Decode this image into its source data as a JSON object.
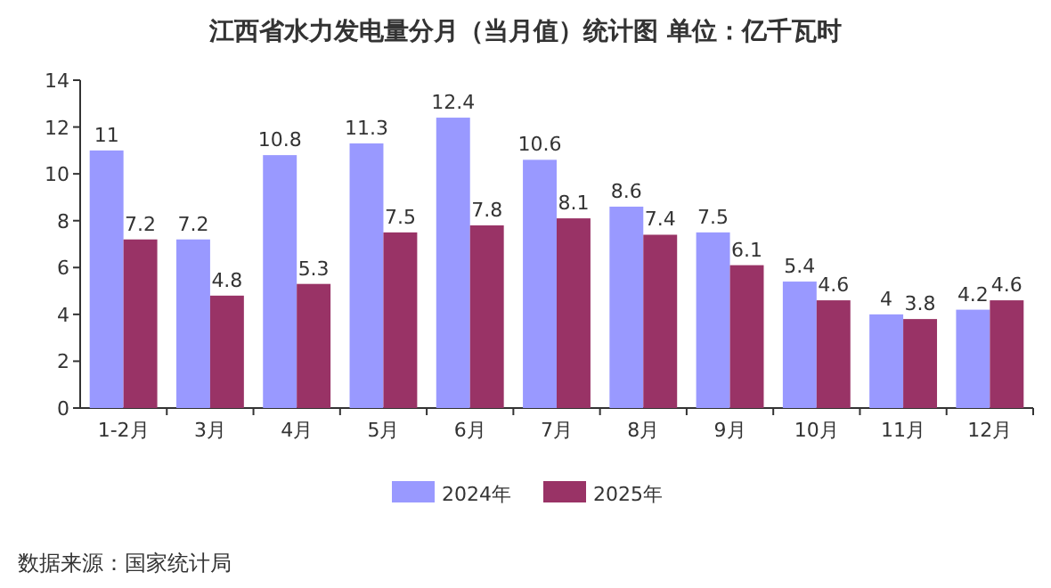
{
  "chart_data": {
    "type": "bar",
    "title": "江西省水力发电量分月（当月值）统计图 单位：亿千瓦时",
    "categories": [
      "1-2月",
      "3月",
      "4月",
      "5月",
      "6月",
      "7月",
      "8月",
      "9月",
      "10月",
      "11月",
      "12月"
    ],
    "series": [
      {
        "name": "2024年",
        "color": "#9999ff",
        "values": [
          11,
          7.2,
          10.8,
          11.3,
          12.4,
          10.6,
          8.6,
          7.5,
          5.4,
          4,
          4.2
        ]
      },
      {
        "name": "2025年",
        "color": "#993366",
        "values": [
          7.2,
          4.8,
          5.3,
          7.5,
          7.8,
          8.1,
          7.4,
          6.1,
          4.6,
          3.8,
          4.6
        ]
      }
    ],
    "ylim": [
      0,
      14
    ],
    "yticks": [
      0,
      2,
      4,
      6,
      8,
      10,
      12,
      14
    ],
    "data_labels": true,
    "legend": "bottom",
    "annotations": [
      "数据来源：国家统计局"
    ]
  }
}
